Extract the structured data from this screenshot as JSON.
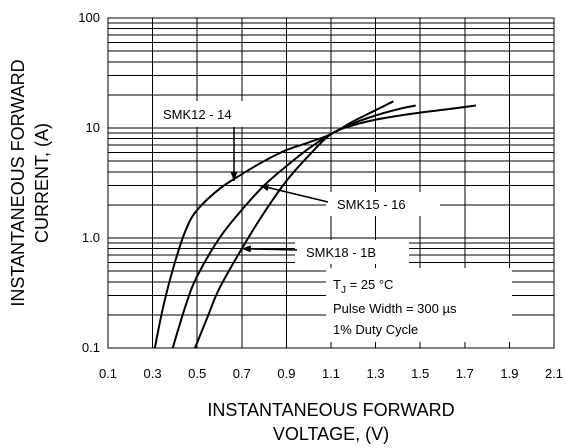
{
  "chart_data": {
    "type": "line",
    "xlabel_lines": [
      "INSTANTANEOUS FORWARD",
      "VOLTAGE, (V)"
    ],
    "ylabel_lines": [
      "INSTANTANEOUS FORWARD",
      "CURRENT, (A)"
    ],
    "xlim": [
      0.1,
      2.1
    ],
    "ylim": [
      0.1,
      100
    ],
    "yscale": "log",
    "grid": true,
    "x_ticks": [
      "0.1",
      "0.3",
      "0.5",
      "0.7",
      "0.9",
      "1.1",
      "1.3",
      "1.5",
      "1.7",
      "1.9",
      "2.1"
    ],
    "y_ticks": [
      {
        "value": 0.1,
        "label": "0.1"
      },
      {
        "value": 1,
        "label": "1.0"
      },
      {
        "value": 10,
        "label": "10"
      },
      {
        "value": 100,
        "label": "100"
      }
    ],
    "series": [
      {
        "name": "SMK12 - 14",
        "points": [
          [
            0.31,
            0.1
          ],
          [
            0.35,
            0.25
          ],
          [
            0.4,
            0.6
          ],
          [
            0.45,
            1.2
          ],
          [
            0.5,
            1.8
          ],
          [
            0.6,
            2.8
          ],
          [
            0.7,
            3.8
          ],
          [
            0.8,
            5.0
          ],
          [
            0.9,
            6.3
          ],
          [
            1.0,
            7.4
          ],
          [
            1.1,
            8.8
          ],
          [
            1.2,
            11.5
          ],
          [
            1.3,
            14.5
          ],
          [
            1.38,
            17.5
          ]
        ]
      },
      {
        "name": "SMK15 - 16",
        "points": [
          [
            0.39,
            0.1
          ],
          [
            0.45,
            0.25
          ],
          [
            0.5,
            0.45
          ],
          [
            0.6,
            1.0
          ],
          [
            0.7,
            1.8
          ],
          [
            0.8,
            3.0
          ],
          [
            0.9,
            4.5
          ],
          [
            1.0,
            6.5
          ],
          [
            1.1,
            8.8
          ],
          [
            1.2,
            11.0
          ],
          [
            1.3,
            13.0
          ],
          [
            1.4,
            14.8
          ],
          [
            1.48,
            16.0
          ]
        ]
      },
      {
        "name": "SMK18 - 1B",
        "points": [
          [
            0.49,
            0.1
          ],
          [
            0.55,
            0.2
          ],
          [
            0.6,
            0.35
          ],
          [
            0.7,
            0.8
          ],
          [
            0.8,
            1.7
          ],
          [
            0.9,
            3.3
          ],
          [
            1.0,
            5.6
          ],
          [
            1.1,
            8.8
          ],
          [
            1.2,
            10.6
          ],
          [
            1.3,
            11.9
          ],
          [
            1.4,
            12.9
          ],
          [
            1.5,
            13.8
          ],
          [
            1.6,
            14.6
          ],
          [
            1.75,
            16.0
          ]
        ]
      }
    ],
    "annotations": {
      "tj_main": "T",
      "tj_sub": "J",
      "tj_rest": " = 25 °C",
      "pulse_width": "Pulse Width  = 300 µs",
      "duty_cycle": "1% Duty Cycle"
    }
  }
}
